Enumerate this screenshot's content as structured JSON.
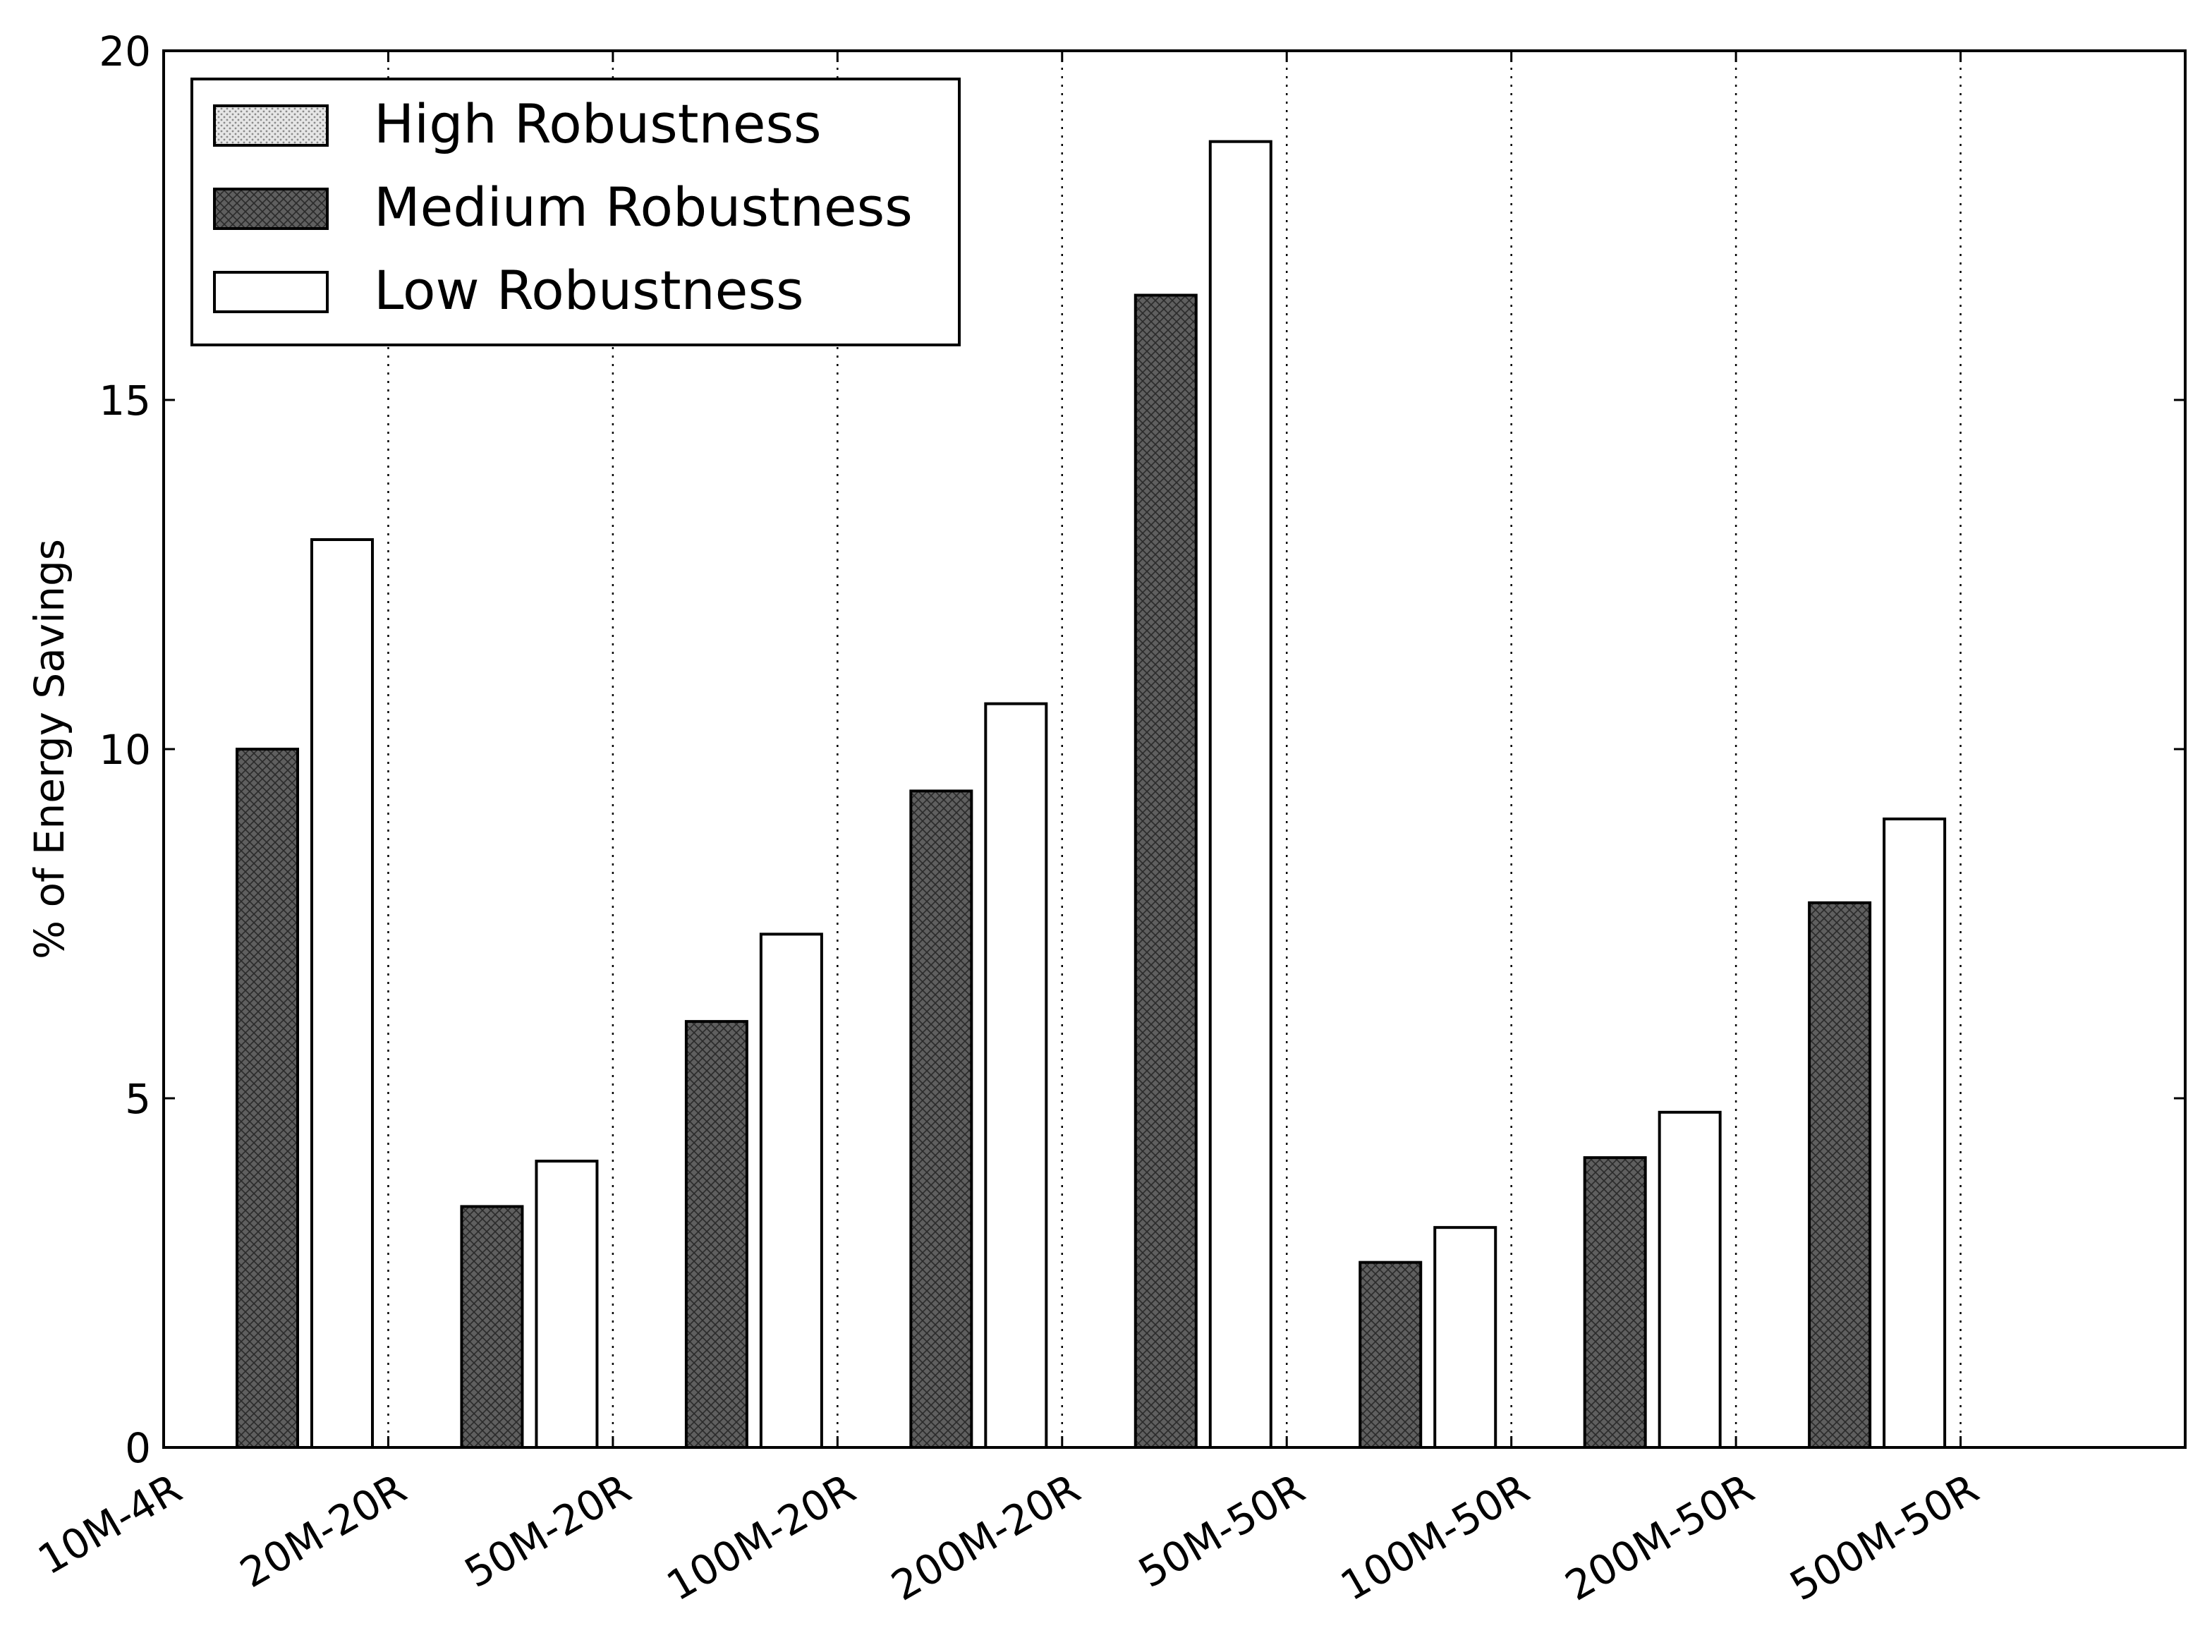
{
  "chart_data": {
    "type": "bar",
    "title": "",
    "xlabel": "",
    "ylabel": "% of Energy Savings",
    "ylim": [
      0,
      20
    ],
    "yticks": [
      0,
      5,
      10,
      15,
      20
    ],
    "grid": "vertical dotted lines at category boundaries",
    "legend_position": "top-left",
    "categories": [
      "10M-4R",
      "20M-20R",
      "50M-20R",
      "100M-20R",
      "200M-20R",
      "50M-50R",
      "100M-50R",
      "200M-50R",
      "500M-50R"
    ],
    "series": [
      {
        "name": "High Robustness",
        "pattern": "dots",
        "color": "#d9d9d9",
        "values": [
          0,
          0,
          0,
          0,
          0,
          0,
          0,
          0,
          0
        ]
      },
      {
        "name": "Medium Robustness",
        "pattern": "crosshatch",
        "color": "#5f5f5f",
        "values": [
          10.0,
          3.45,
          6.1,
          9.4,
          16.5,
          2.65,
          4.15,
          7.8,
          0
        ]
      },
      {
        "name": "Low Robustness",
        "pattern": "none",
        "color": "#ffffff",
        "values": [
          13.0,
          4.1,
          7.35,
          10.65,
          18.7,
          3.15,
          4.8,
          9.0,
          0
        ]
      }
    ]
  }
}
